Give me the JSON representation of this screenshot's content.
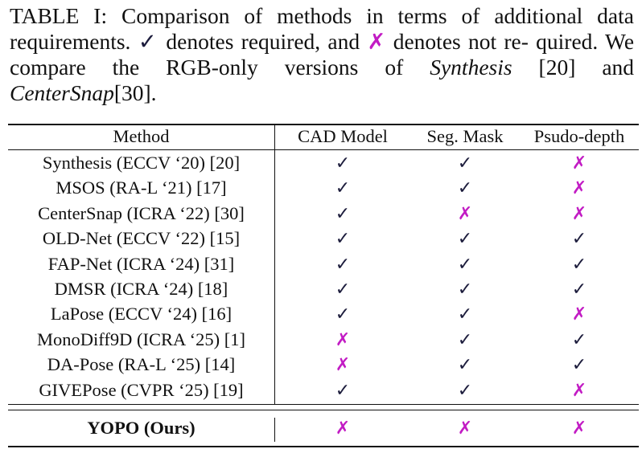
{
  "caption": {
    "label": "TABLE I:",
    "part1": "Comparison of methods in terms of additional data requirements.",
    "check_symbol": "✓",
    "part2": "denotes required, and",
    "cross_symbol": "✗",
    "part3": "denotes not re- quired. We compare the RGB-only versions of",
    "italic1": "Synthesis",
    "part4": "[20] and",
    "italic2": "CenterSnap",
    "part5": "[30]."
  },
  "table": {
    "headers": [
      "Method",
      "CAD Model",
      "Seg. Mask",
      "Psudo-depth"
    ],
    "rows": [
      {
        "method": "Synthesis (ECCV ‘20) [20]",
        "cad": "✓",
        "seg": "✓",
        "depth": "✗"
      },
      {
        "method": "MSOS (RA-L ‘21) [17]",
        "cad": "✓",
        "seg": "✓",
        "depth": "✗"
      },
      {
        "method": "CenterSnap (ICRA ‘22) [30]",
        "cad": "✓",
        "seg": "✗",
        "depth": "✗"
      },
      {
        "method": "OLD-Net (ECCV ‘22) [15]",
        "cad": "✓",
        "seg": "✓",
        "depth": "✓"
      },
      {
        "method": "FAP-Net (ICRA ‘24) [31]",
        "cad": "✓",
        "seg": "✓",
        "depth": "✓"
      },
      {
        "method": "DMSR (ICRA ‘24) [18]",
        "cad": "✓",
        "seg": "✓",
        "depth": "✓"
      },
      {
        "method": "LaPose (ECCV ‘24) [16]",
        "cad": "✓",
        "seg": "✓",
        "depth": "✗"
      },
      {
        "method": "MonoDiff9D (ICRA ‘25) [1]",
        "cad": "✗",
        "seg": "✓",
        "depth": "✓"
      },
      {
        "method": "DA-Pose (RA-L ‘25) [14]",
        "cad": "✗",
        "seg": "✓",
        "depth": "✓"
      },
      {
        "method": "GIVEPose (CVPR ‘25)  [19]",
        "cad": "✓",
        "seg": "✓",
        "depth": "✗"
      }
    ],
    "ours": {
      "method": "YOPO (Ours)",
      "cad": "✗",
      "seg": "✗",
      "depth": "✗"
    }
  },
  "colors": {
    "cross": "#c21cc4",
    "check": "#1c1c3c"
  }
}
